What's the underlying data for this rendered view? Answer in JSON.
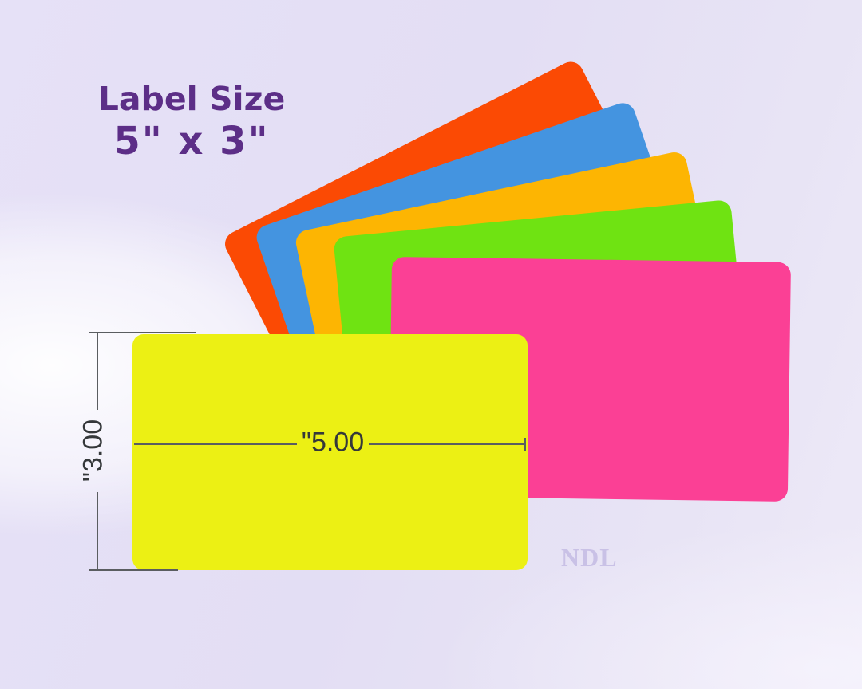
{
  "header": {
    "title": "Label Size",
    "size": "5\" x 3\""
  },
  "dimensions": {
    "width_label": "\"5.00",
    "height_label": "\"3.00"
  },
  "brand": {
    "text": "NDL"
  },
  "cards": [
    {
      "name": "orange",
      "color": "#fb4a04"
    },
    {
      "name": "blue",
      "color": "#4494e0"
    },
    {
      "name": "gold",
      "color": "#fdb502"
    },
    {
      "name": "green",
      "color": "#6fe312"
    },
    {
      "name": "pink",
      "color": "#fb4095"
    },
    {
      "name": "yellow-front",
      "color": "#ecf014"
    }
  ],
  "colors": {
    "background_lavender": "#e4dff5",
    "background_glow": "#ffffff",
    "title_purple": "#5c2e87",
    "dimension_line": "#5a5d60",
    "dimension_text": "#35383a",
    "brand_text": "#c9c1e6"
  }
}
